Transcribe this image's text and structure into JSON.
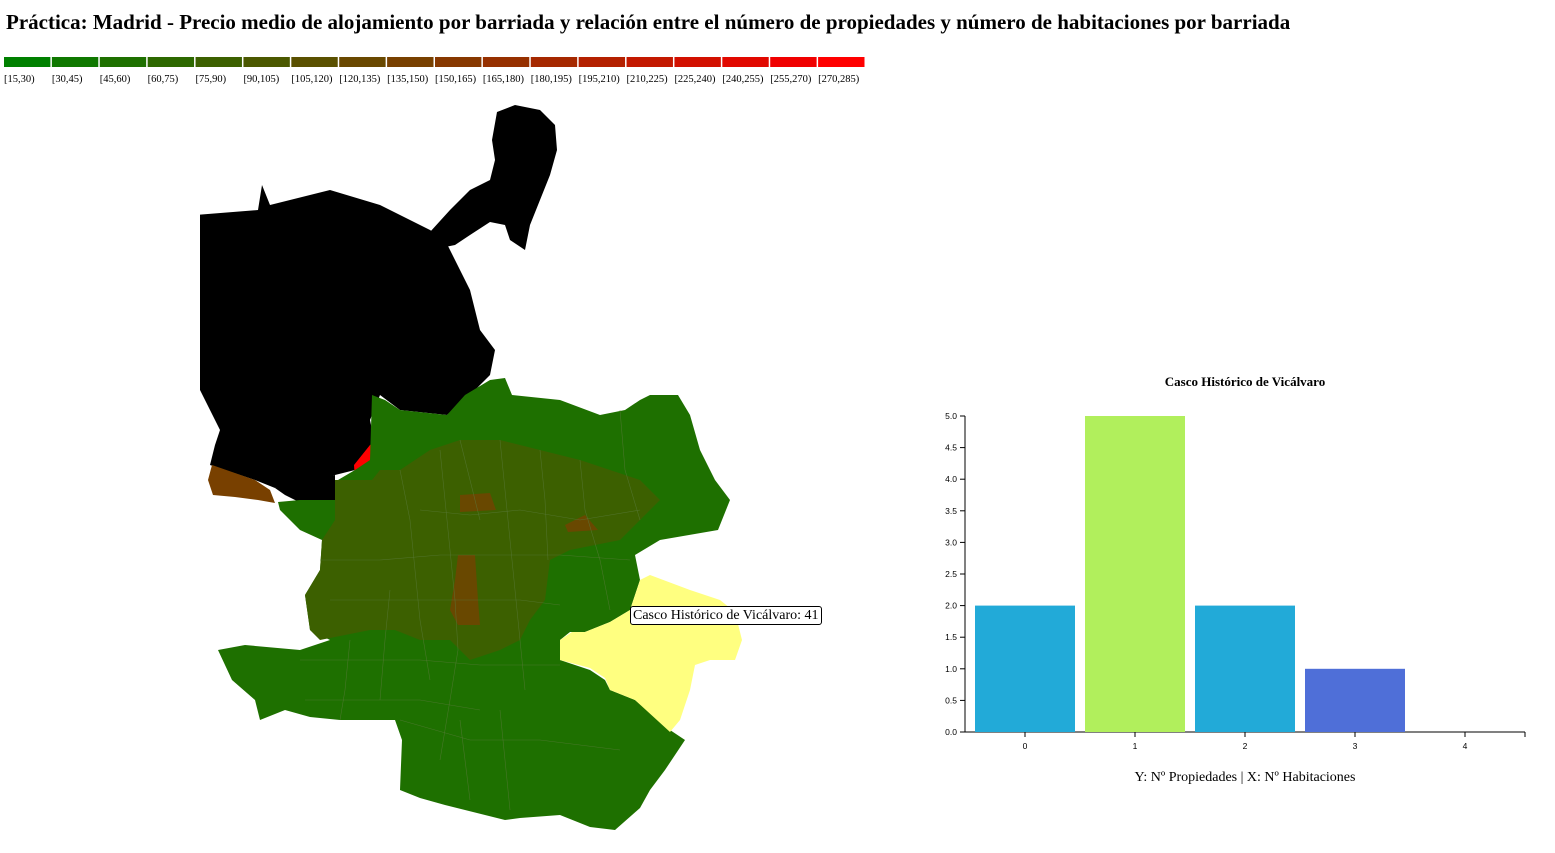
{
  "page": {
    "title": "Práctica: Madrid - Precio medio de alojamiento por barriada y relación entre el número de propiedades y número de habitaciones por barriada"
  },
  "legend": {
    "colors": [
      "#008000",
      "#0f7800",
      "#1e7000",
      "#2d6800",
      "#3c6000",
      "#4b5800",
      "#5a5000",
      "#694800",
      "#784000",
      "#873800",
      "#963000",
      "#a52800",
      "#b42000",
      "#c31800",
      "#d21000",
      "#e10800",
      "#f00000",
      "#ff0000"
    ],
    "labels": [
      "[15,30)",
      "[30,45)",
      "[45,60)",
      "[60,75)",
      "[75,90)",
      "[90,105)",
      "[105,120)",
      "[120,135)",
      "[135,150)",
      "[150,165)",
      "[165,180)",
      "[180,195)",
      "[195,210)",
      "[210,225)",
      "[225,240)",
      "[240,255)",
      "[255,270)",
      "[270,285)"
    ]
  },
  "map": {
    "selected_color": "#ffff80",
    "no_data_color": "#000000",
    "high_color": "#ff0000",
    "tooltip_text": "Casco Histórico de Vicálvaro: 41"
  },
  "chart_data": {
    "type": "bar",
    "title": "Casco Histórico de Vicálvaro",
    "xlabel": "Y: Nº Propiedades | X: Nº Habitaciones",
    "ylabel": "",
    "categories": [
      "0",
      "1",
      "2",
      "3",
      "4"
    ],
    "values": [
      2,
      5,
      2,
      1,
      0
    ],
    "ylim": [
      0,
      5
    ],
    "yticks": [
      "0.0",
      "0.5",
      "1.0",
      "1.5",
      "2.0",
      "2.5",
      "3.0",
      "3.5",
      "4.0",
      "4.5",
      "5.0"
    ],
    "colors": [
      "#22aad8",
      "#b1ef5c",
      "#22aad8",
      "#4f6fd8",
      "#22aad8"
    ]
  }
}
